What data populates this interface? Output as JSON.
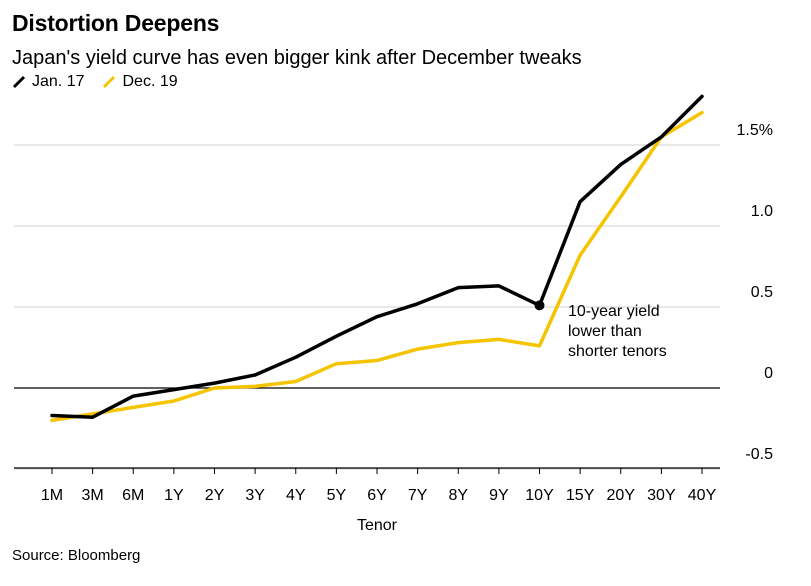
{
  "title": "Distortion Deepens",
  "subtitle": "Japan's yield curve has even bigger kink after December tweaks",
  "source": "Source: Bloomberg",
  "annotation": [
    "10-year yield",
    "lower than",
    "shorter tenors"
  ],
  "colors": {
    "jan17": "#000000",
    "dec19": "#f5c400",
    "grid": "#d0d0d0"
  },
  "chart_data": {
    "type": "line",
    "title": "Distortion Deepens",
    "subtitle": "Japan's yield curve has even bigger kink after December tweaks",
    "xlabel": "Tenor",
    "ylabel": "",
    "categories": [
      "1M",
      "3M",
      "6M",
      "1Y",
      "2Y",
      "3Y",
      "4Y",
      "5Y",
      "6Y",
      "7Y",
      "8Y",
      "9Y",
      "10Y",
      "15Y",
      "20Y",
      "30Y",
      "40Y"
    ],
    "ytick_values": [
      -0.5,
      0,
      0.5,
      1.0,
      1.5
    ],
    "ytick_labels": [
      "-0.5",
      "0",
      "0.5",
      "1.0",
      "1.5%"
    ],
    "ylim": [
      -0.5,
      1.9
    ],
    "grid": true,
    "legend_position": "top-left",
    "series": [
      {
        "name": "Jan. 17",
        "color": "#000000",
        "values": [
          -0.17,
          -0.18,
          -0.05,
          -0.01,
          0.03,
          0.08,
          0.19,
          0.32,
          0.44,
          0.52,
          0.62,
          0.63,
          0.51,
          1.15,
          1.38,
          1.55,
          1.8
        ]
      },
      {
        "name": "Dec. 19",
        "color": "#f5c400",
        "values": [
          -0.2,
          -0.16,
          -0.12,
          -0.08,
          0.0,
          0.01,
          0.04,
          0.15,
          0.17,
          0.24,
          0.28,
          0.3,
          0.26,
          0.82,
          1.18,
          1.55,
          1.7
        ]
      }
    ],
    "highlight_point": {
      "series": "Jan. 17",
      "category": "10Y",
      "value": 0.51
    }
  }
}
